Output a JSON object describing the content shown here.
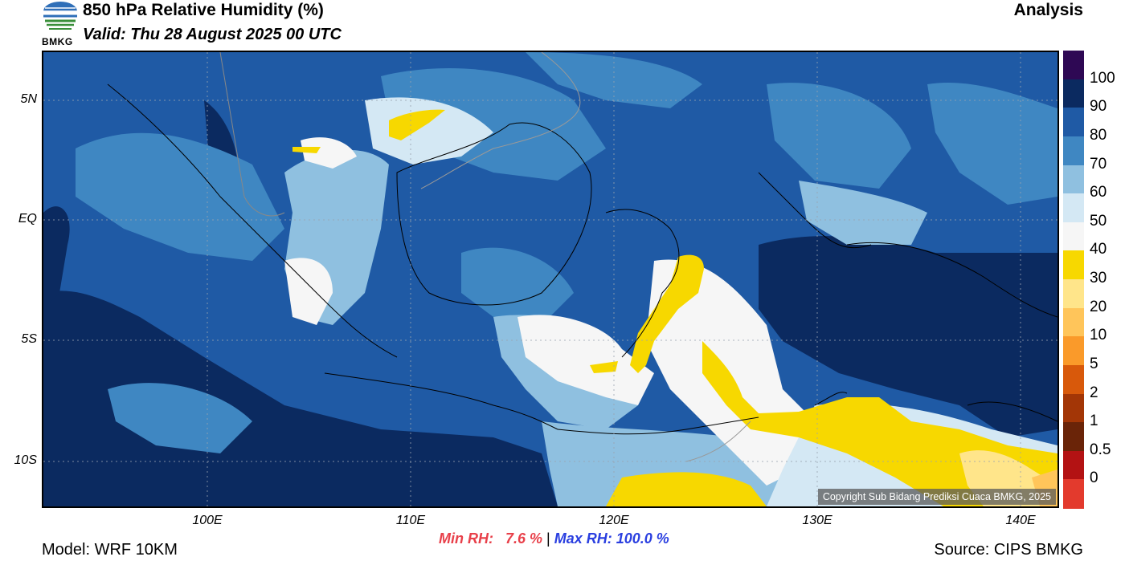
{
  "header": {
    "title": "850 hPa Relative Humidity (%)",
    "valid": "Valid: Thu 28 August 2025 00 UTC",
    "analysis_label": "Analysis",
    "logo_text": "BMKG"
  },
  "map": {
    "lat_labels": [
      "5N",
      "EQ",
      "5S",
      "10S"
    ],
    "lon_labels": [
      "100E",
      "110E",
      "120E",
      "130E",
      "140E"
    ],
    "copyright": "Copyright Sub Bidang Prediksi Cuaca BMKG, 2025"
  },
  "colorbar": {
    "labels": [
      "100",
      "90",
      "80",
      "70",
      "60",
      "50",
      "40",
      "30",
      "20",
      "10",
      "5",
      "2",
      "1",
      "0.5",
      "0"
    ],
    "colors": [
      "#2e0854",
      "#0b2a60",
      "#1f5aa5",
      "#3f87c2",
      "#8fc0e0",
      "#d4e8f4",
      "#f6f6f6",
      "#f7d800",
      "#ffe58a",
      "#ffc55a",
      "#fa9a2a",
      "#d8590b",
      "#a33606",
      "#6a2408",
      "#b31213",
      "#e33a2d"
    ]
  },
  "stats": {
    "min_label": "Min RH:   7.6 % ",
    "separator": "| ",
    "max_label": "Max RH: 100.0 %"
  },
  "footer": {
    "model": "Model: WRF 10KM",
    "source": "Source: CIPS BMKG"
  }
}
